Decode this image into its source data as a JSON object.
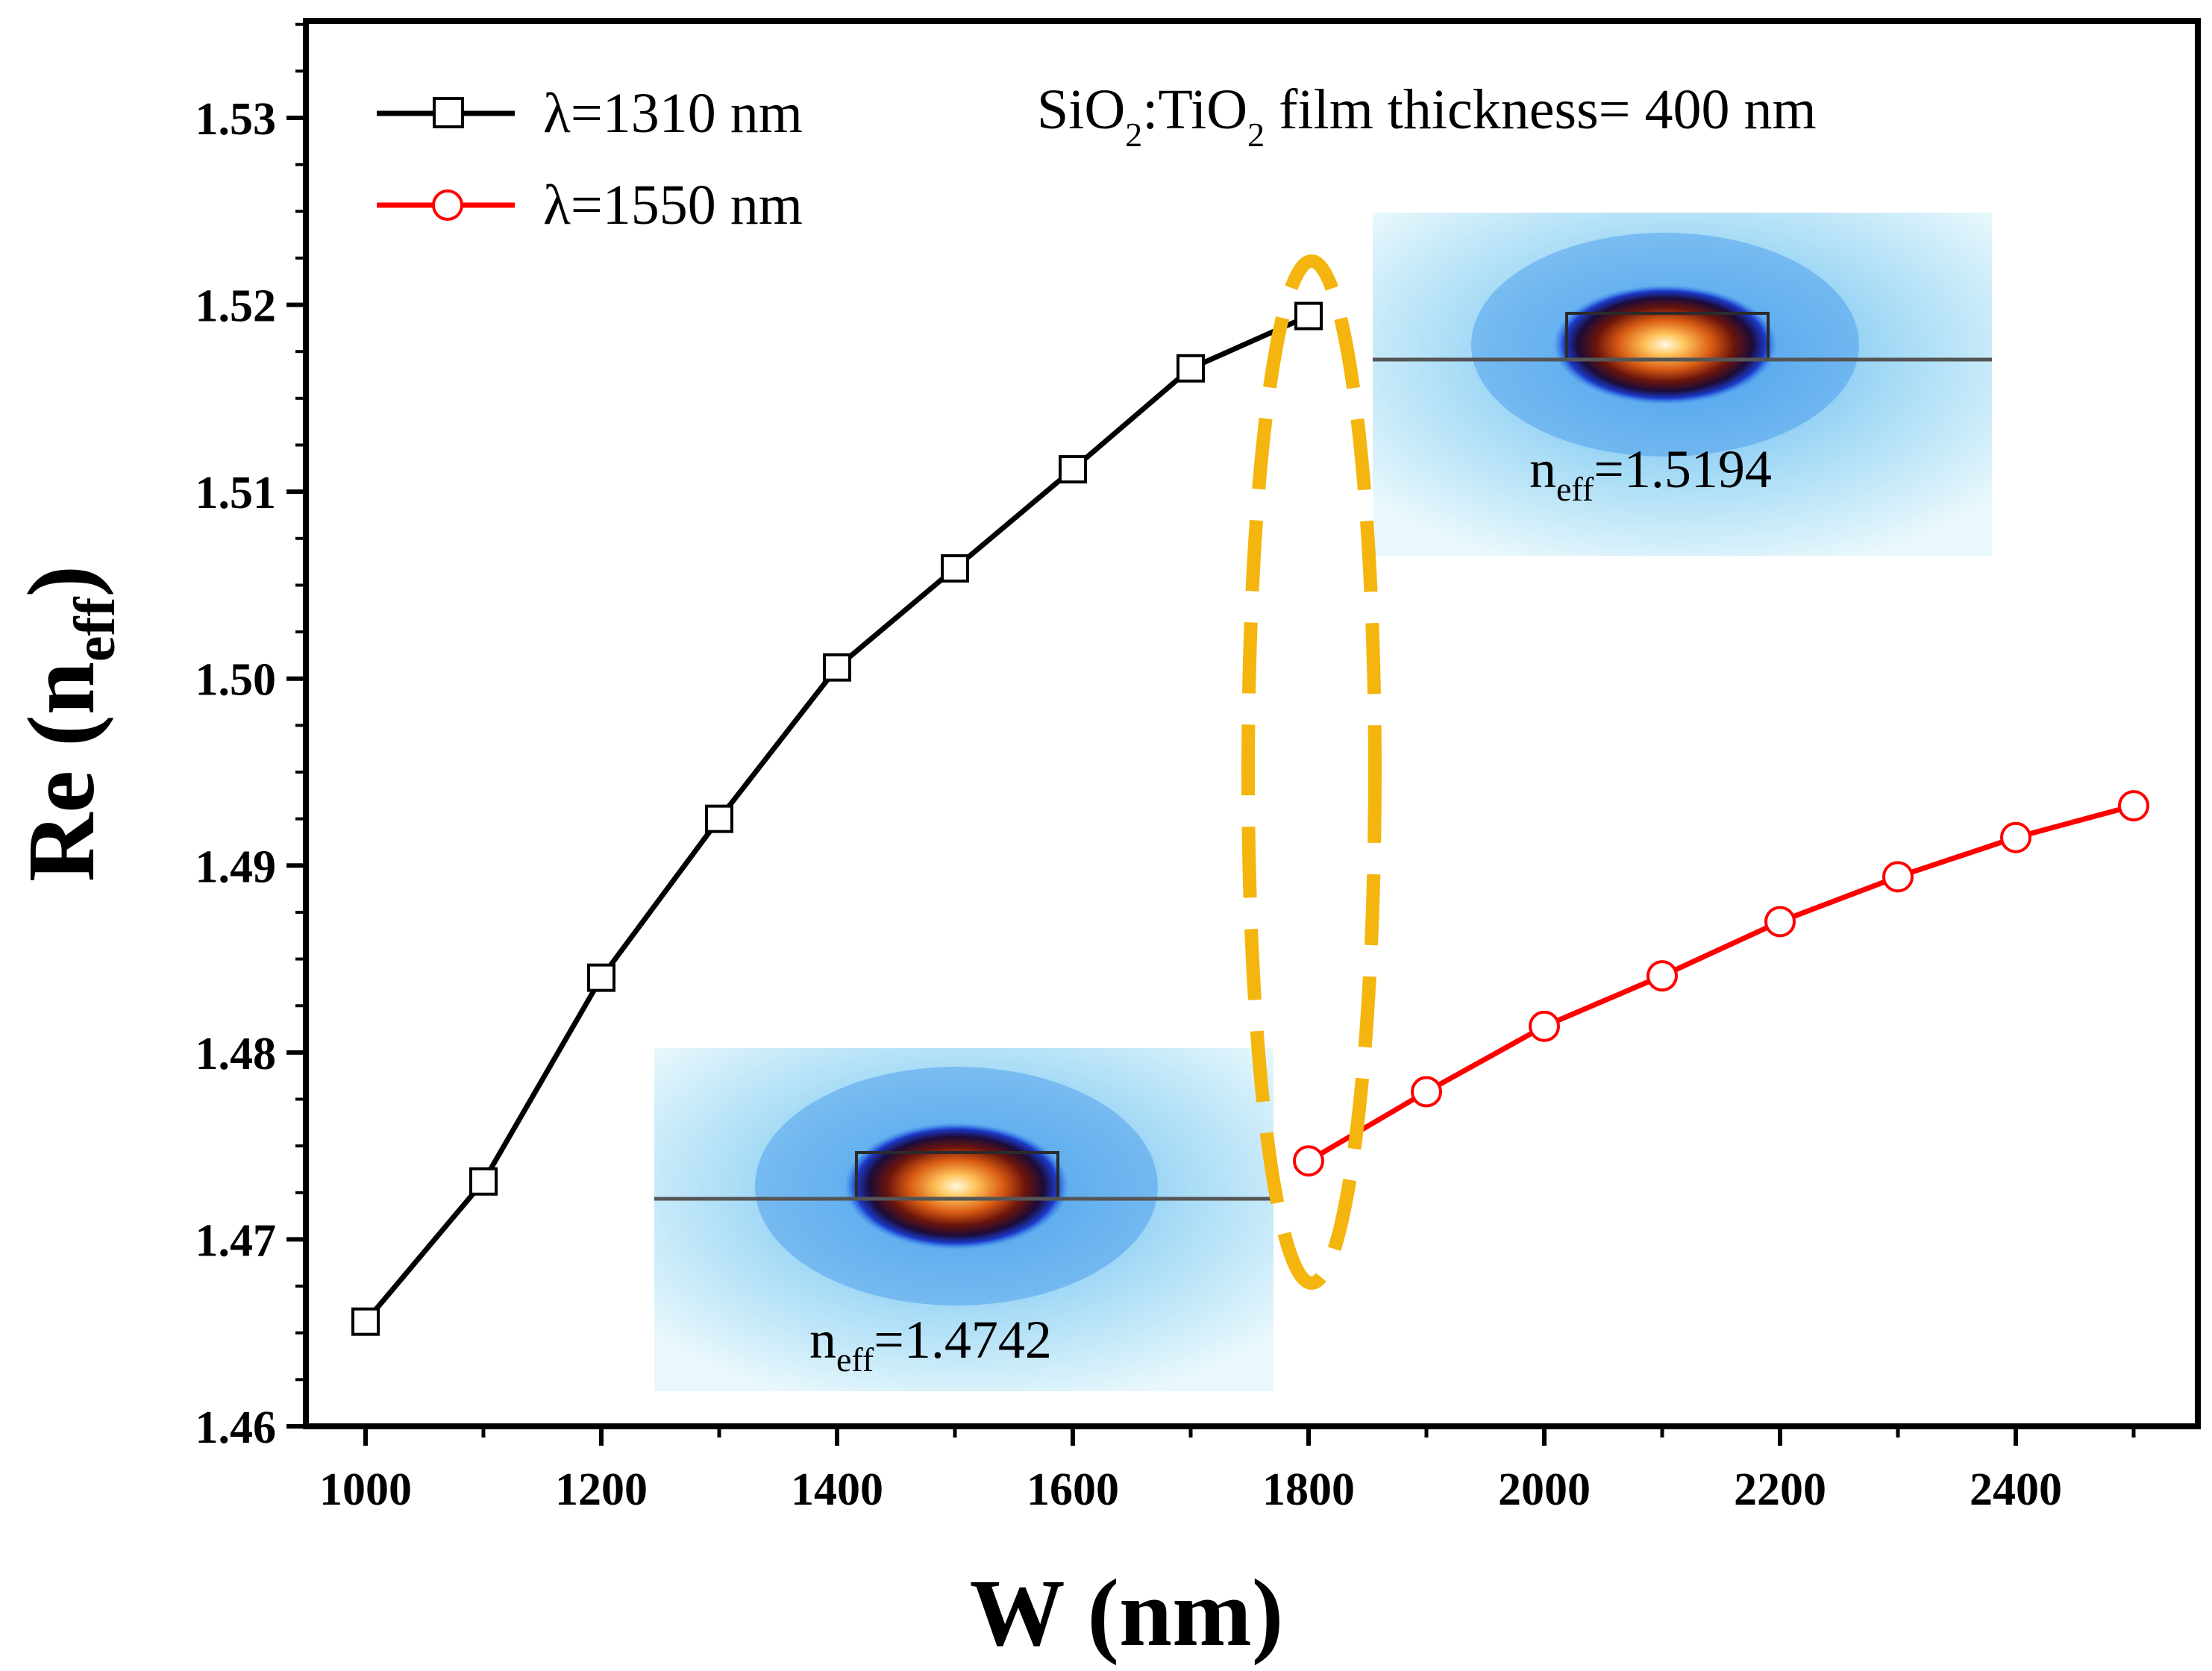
{
  "chart_data": {
    "type": "line",
    "xlabel": "W (nm)",
    "ylabel_main": "Re (n",
    "ylabel_sub": "eff",
    "ylabel_close": ")",
    "xlim": [
      950,
      2550
    ],
    "ylim": [
      1.46,
      1.535
    ],
    "x_ticks": [
      1000,
      1200,
      1400,
      1600,
      1800,
      2000,
      2200,
      2400
    ],
    "x_tick_labels": [
      "1000",
      "1200",
      "1400",
      "1600",
      "1800",
      "2000",
      "2200",
      "2400"
    ],
    "y_ticks": [
      1.46,
      1.47,
      1.48,
      1.49,
      1.5,
      1.51,
      1.52,
      1.53
    ],
    "y_tick_labels": [
      "1.46",
      "1.47",
      "1.48",
      "1.49",
      "1.50",
      "1.51",
      "1.52",
      "1.53"
    ],
    "series": [
      {
        "name": "λ=1310 nm",
        "color": "#000000",
        "marker": "square",
        "x": [
          1000,
          1100,
          1200,
          1300,
          1400,
          1500,
          1600,
          1700,
          1800
        ],
        "values": [
          1.4656,
          1.4731,
          1.484,
          1.4925,
          1.5006,
          1.5059,
          1.5112,
          1.5166,
          1.5194
        ]
      },
      {
        "name": "λ=1550 nm",
        "color": "#ff0000",
        "marker": "circle",
        "x": [
          1800,
          1900,
          2000,
          2100,
          2200,
          2300,
          2400,
          2500
        ],
        "values": [
          1.4742,
          1.4779,
          1.4814,
          1.4841,
          1.487,
          1.4894,
          1.4915,
          1.4932
        ]
      }
    ],
    "annotation": {
      "prefix": "SiO",
      "sub1": "2",
      "middle": ":TiO",
      "sub2": "2",
      "suffix": " film thickness= 400 nm"
    },
    "insets": [
      {
        "label_main": "n",
        "label_sub": "eff",
        "label_value": "=1.5194"
      },
      {
        "label_main": "n",
        "label_sub": "eff",
        "label_value": "=1.4742"
      }
    ],
    "highlight_color": "#f5b50f"
  }
}
